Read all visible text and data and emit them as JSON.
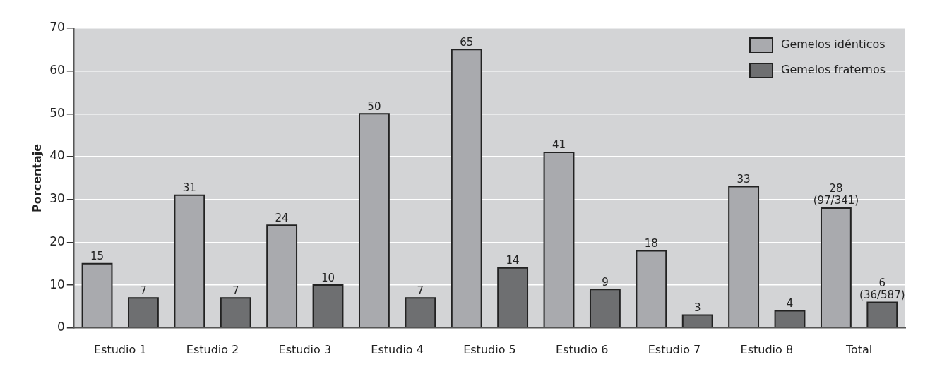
{
  "chart_data": {
    "type": "bar",
    "ylabel": "Porcentaje",
    "categories": [
      "Estudio 1",
      "Estudio 2",
      "Estudio 3",
      "Estudio 4",
      "Estudio 5",
      "Estudio 6",
      "Estudio 7",
      "Estudio 8",
      "Total"
    ],
    "series": [
      {
        "name": "Gemelos idénticos",
        "color": "#a9aaae",
        "values": [
          15,
          31,
          24,
          50,
          65,
          41,
          18,
          33,
          28
        ],
        "value_labels": [
          "15",
          "31",
          "24",
          "50",
          "65",
          "41",
          "18",
          "33",
          "28\n(97/341)"
        ]
      },
      {
        "name": "Gemelos fraternos",
        "color": "#6e6f71",
        "values": [
          7,
          7,
          10,
          7,
          14,
          9,
          3,
          4,
          6
        ],
        "value_labels": [
          "7",
          "7",
          "10",
          "7",
          "14",
          "9",
          "3",
          "4",
          "6\n(36/587)"
        ]
      }
    ],
    "ylim": [
      0,
      70
    ],
    "yticks": [
      0,
      10,
      20,
      30,
      40,
      50,
      60,
      70
    ],
    "grid": "y",
    "legend": "top right"
  }
}
